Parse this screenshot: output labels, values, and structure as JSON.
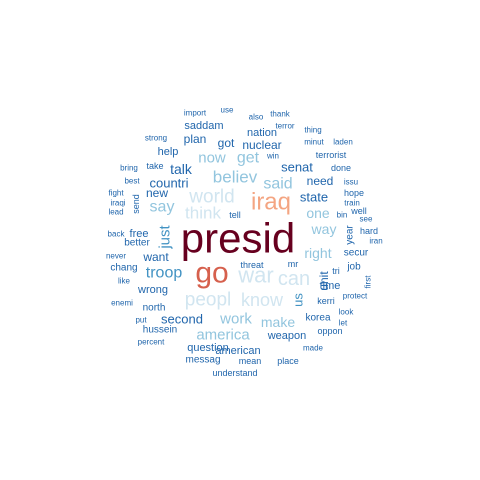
{
  "chart_data": {
    "type": "wordcloud",
    "title": "",
    "colors": {
      "dark_red": "#67001f",
      "red": "#d6604d",
      "salmon": "#f4a582",
      "pale_blue": "#d1e5f0",
      "light_blue": "#92c5de",
      "mid_blue": "#4393c3",
      "blue": "#2166ac",
      "navy": "#053061"
    },
    "words": [
      {
        "text": "presid",
        "size": 42,
        "color": "#67001f"
      },
      {
        "text": "go",
        "size": 30,
        "color": "#d6604d"
      },
      {
        "text": "iraq",
        "size": 24,
        "color": "#f4a582"
      },
      {
        "text": "war",
        "size": 22,
        "color": "#d1e5f0"
      },
      {
        "text": "can",
        "size": 20,
        "color": "#d1e5f0"
      },
      {
        "text": "world",
        "size": 19,
        "color": "#d1e5f0"
      },
      {
        "text": "peopl",
        "size": 19,
        "color": "#d1e5f0"
      },
      {
        "text": "know",
        "size": 18,
        "color": "#d1e5f0"
      },
      {
        "text": "think",
        "size": 17,
        "color": "#d1e5f0"
      },
      {
        "text": "believ",
        "size": 17,
        "color": "#92c5de"
      },
      {
        "text": "get",
        "size": 16,
        "color": "#92c5de"
      },
      {
        "text": "said",
        "size": 16,
        "color": "#92c5de"
      },
      {
        "text": "say",
        "size": 16,
        "color": "#92c5de"
      },
      {
        "text": "now",
        "size": 15,
        "color": "#92c5de"
      },
      {
        "text": "troop",
        "size": 16,
        "color": "#4393c3"
      },
      {
        "text": "america",
        "size": 15,
        "color": "#92c5de"
      },
      {
        "text": "work",
        "size": 15,
        "color": "#92c5de"
      },
      {
        "text": "make",
        "size": 14,
        "color": "#92c5de"
      },
      {
        "text": "one",
        "size": 14,
        "color": "#92c5de"
      },
      {
        "text": "way",
        "size": 14,
        "color": "#92c5de"
      },
      {
        "text": "right",
        "size": 14,
        "color": "#92c5de"
      },
      {
        "text": "us",
        "size": 13,
        "color": "#4393c3"
      },
      {
        "text": "just",
        "size": 15,
        "color": "#4393c3"
      },
      {
        "text": "second",
        "size": 13,
        "color": "#2166ac"
      },
      {
        "text": "talk",
        "size": 14,
        "color": "#2166ac"
      },
      {
        "text": "countri",
        "size": 13,
        "color": "#2166ac"
      },
      {
        "text": "state",
        "size": 13,
        "color": "#2166ac"
      },
      {
        "text": "senat",
        "size": 13,
        "color": "#2166ac"
      },
      {
        "text": "nuclear",
        "size": 12,
        "color": "#2166ac"
      },
      {
        "text": "need",
        "size": 12,
        "color": "#2166ac"
      },
      {
        "text": "want",
        "size": 12,
        "color": "#2166ac"
      },
      {
        "text": "unit",
        "size": 12,
        "color": "#2166ac"
      },
      {
        "text": "new",
        "size": 12,
        "color": "#2166ac"
      },
      {
        "text": "wrong",
        "size": 11,
        "color": "#2166ac"
      },
      {
        "text": "weapon",
        "size": 11,
        "color": "#2166ac"
      },
      {
        "text": "american",
        "size": 11,
        "color": "#2166ac"
      },
      {
        "text": "question",
        "size": 11,
        "color": "#2166ac"
      },
      {
        "text": "got",
        "size": 12,
        "color": "#2166ac"
      },
      {
        "text": "nation",
        "size": 11,
        "color": "#2166ac"
      },
      {
        "text": "plan",
        "size": 12,
        "color": "#2166ac"
      },
      {
        "text": "saddam",
        "size": 11,
        "color": "#2166ac"
      },
      {
        "text": "help",
        "size": 11,
        "color": "#2166ac"
      },
      {
        "text": "free",
        "size": 11,
        "color": "#2166ac"
      },
      {
        "text": "better",
        "size": 10,
        "color": "#2166ac"
      },
      {
        "text": "chang",
        "size": 10,
        "color": "#2166ac"
      },
      {
        "text": "north",
        "size": 10,
        "color": "#2166ac"
      },
      {
        "text": "hussein",
        "size": 10,
        "color": "#2166ac"
      },
      {
        "text": "messag",
        "size": 10,
        "color": "#2166ac"
      },
      {
        "text": "time",
        "size": 11,
        "color": "#2166ac"
      },
      {
        "text": "korea",
        "size": 10,
        "color": "#2166ac"
      },
      {
        "text": "secur",
        "size": 10,
        "color": "#2166ac"
      },
      {
        "text": "job",
        "size": 10,
        "color": "#2166ac"
      },
      {
        "text": "year",
        "size": 10,
        "color": "#2166ac"
      },
      {
        "text": "hard",
        "size": 9,
        "color": "#2166ac"
      },
      {
        "text": "terrorist",
        "size": 9,
        "color": "#2166ac"
      },
      {
        "text": "send",
        "size": 9,
        "color": "#2166ac"
      },
      {
        "text": "kerri",
        "size": 9,
        "color": "#2166ac"
      },
      {
        "text": "threat",
        "size": 9,
        "color": "#2166ac"
      },
      {
        "text": "mean",
        "size": 9,
        "color": "#2166ac"
      },
      {
        "text": "place",
        "size": 9,
        "color": "#2166ac"
      },
      {
        "text": "understand",
        "size": 9,
        "color": "#2166ac"
      },
      {
        "text": "oppon",
        "size": 9,
        "color": "#2166ac"
      },
      {
        "text": "done",
        "size": 9,
        "color": "#2166ac"
      },
      {
        "text": "hope",
        "size": 9,
        "color": "#2166ac"
      },
      {
        "text": "well",
        "size": 9,
        "color": "#2166ac"
      },
      {
        "text": "tell",
        "size": 9,
        "color": "#2166ac"
      },
      {
        "text": "mr",
        "size": 9,
        "color": "#2166ac"
      },
      {
        "text": "tri",
        "size": 9,
        "color": "#2166ac"
      },
      {
        "text": "win",
        "size": 8,
        "color": "#2166ac"
      },
      {
        "text": "take",
        "size": 9,
        "color": "#2166ac"
      },
      {
        "text": "look",
        "size": 8,
        "color": "#2166ac"
      },
      {
        "text": "let",
        "size": 8,
        "color": "#2166ac"
      },
      {
        "text": "made",
        "size": 8,
        "color": "#2166ac"
      },
      {
        "text": "put",
        "size": 8,
        "color": "#2166ac"
      },
      {
        "text": "percent",
        "size": 8,
        "color": "#2166ac"
      },
      {
        "text": "enemi",
        "size": 8,
        "color": "#2166ac"
      },
      {
        "text": "never",
        "size": 8,
        "color": "#2166ac"
      },
      {
        "text": "like",
        "size": 8,
        "color": "#2166ac"
      },
      {
        "text": "back",
        "size": 8,
        "color": "#2166ac"
      },
      {
        "text": "lead",
        "size": 8,
        "color": "#2166ac"
      },
      {
        "text": "fight",
        "size": 8,
        "color": "#2166ac"
      },
      {
        "text": "iraqi",
        "size": 8,
        "color": "#2166ac"
      },
      {
        "text": "best",
        "size": 8,
        "color": "#2166ac"
      },
      {
        "text": "bring",
        "size": 8,
        "color": "#2166ac"
      },
      {
        "text": "strong",
        "size": 8,
        "color": "#2166ac"
      },
      {
        "text": "import",
        "size": 8,
        "color": "#2166ac"
      },
      {
        "text": "use",
        "size": 8,
        "color": "#2166ac"
      },
      {
        "text": "also",
        "size": 8,
        "color": "#2166ac"
      },
      {
        "text": "thank",
        "size": 8,
        "color": "#2166ac"
      },
      {
        "text": "terror",
        "size": 8,
        "color": "#2166ac"
      },
      {
        "text": "thing",
        "size": 8,
        "color": "#2166ac"
      },
      {
        "text": "minut",
        "size": 8,
        "color": "#2166ac"
      },
      {
        "text": "laden",
        "size": 8,
        "color": "#2166ac"
      },
      {
        "text": "issu",
        "size": 8,
        "color": "#2166ac"
      },
      {
        "text": "train",
        "size": 8,
        "color": "#2166ac"
      },
      {
        "text": "bin",
        "size": 8,
        "color": "#2166ac"
      },
      {
        "text": "see",
        "size": 8,
        "color": "#2166ac"
      },
      {
        "text": "iran",
        "size": 8,
        "color": "#2166ac"
      },
      {
        "text": "first",
        "size": 8,
        "color": "#2166ac"
      },
      {
        "text": "protect",
        "size": 8,
        "color": "#2166ac"
      }
    ]
  }
}
